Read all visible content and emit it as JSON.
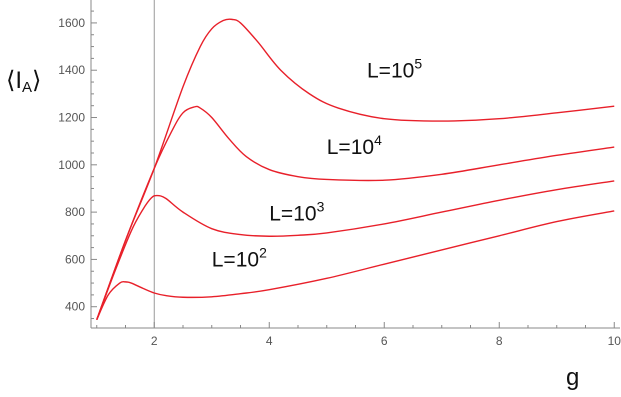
{
  "chart_data": {
    "type": "line",
    "xlabel": "g",
    "ylabel": "⟨I",
    "ylabel_sub": "A",
    "ylabel_close": "⟩",
    "xlim": [
      0.9,
      10.1
    ],
    "ylim": [
      310,
      1680
    ],
    "x_ticks": [
      2,
      4,
      6,
      8,
      10
    ],
    "y_ticks": [
      400,
      600,
      800,
      1000,
      1200,
      1400,
      1600
    ],
    "vline_x": 2,
    "grid": false,
    "colors": {
      "series": "#e8202a",
      "axis": "#888888",
      "vline": "#999999"
    },
    "series": [
      {
        "base": "L=10",
        "exp": "2",
        "label_at": [
          3.0,
          570
        ],
        "x": [
          1.0,
          1.2,
          1.4,
          1.5,
          1.6,
          1.8,
          2.0,
          2.2,
          2.5,
          3.0,
          3.5,
          4.0,
          5.0,
          6.0,
          7.0,
          8.0,
          9.0,
          10.0
        ],
        "y": [
          345,
          450,
          500,
          505,
          500,
          478,
          458,
          447,
          440,
          442,
          455,
          472,
          520,
          580,
          640,
          700,
          760,
          805
        ]
      },
      {
        "base": "L=10",
        "exp": "3",
        "label_at": [
          4.0,
          765
        ],
        "x": [
          1.0,
          1.3,
          1.6,
          1.8,
          1.95,
          2.05,
          2.2,
          2.5,
          3.0,
          3.5,
          4.0,
          4.5,
          5.0,
          6.0,
          7.0,
          8.0,
          9.0,
          10.0
        ],
        "y": [
          345,
          540,
          720,
          810,
          860,
          870,
          858,
          800,
          730,
          705,
          698,
          702,
          712,
          750,
          800,
          850,
          895,
          932
        ]
      },
      {
        "base": "L=10",
        "exp": "4",
        "label_at": [
          5.0,
          1045
        ],
        "x": [
          1.0,
          1.5,
          2.0,
          2.3,
          2.5,
          2.7,
          2.8,
          3.0,
          3.3,
          3.6,
          4.0,
          4.5,
          5.0,
          6.0,
          7.0,
          8.0,
          9.0,
          10.0
        ],
        "y": [
          345,
          680,
          985,
          1140,
          1220,
          1245,
          1240,
          1200,
          1110,
          1035,
          980,
          950,
          938,
          935,
          960,
          1000,
          1040,
          1075
        ]
      },
      {
        "base": "L=10",
        "exp": "5",
        "label_at": [
          5.7,
          1370
        ],
        "x": [
          1.0,
          1.5,
          2.0,
          2.5,
          2.8,
          3.0,
          3.2,
          3.35,
          3.5,
          3.8,
          4.2,
          4.7,
          5.2,
          6.0,
          7.0,
          8.0,
          9.0,
          10.0
        ],
        "y": [
          345,
          680,
          985,
          1330,
          1500,
          1575,
          1610,
          1615,
          1600,
          1520,
          1400,
          1300,
          1240,
          1195,
          1185,
          1195,
          1220,
          1248
        ]
      }
    ]
  }
}
